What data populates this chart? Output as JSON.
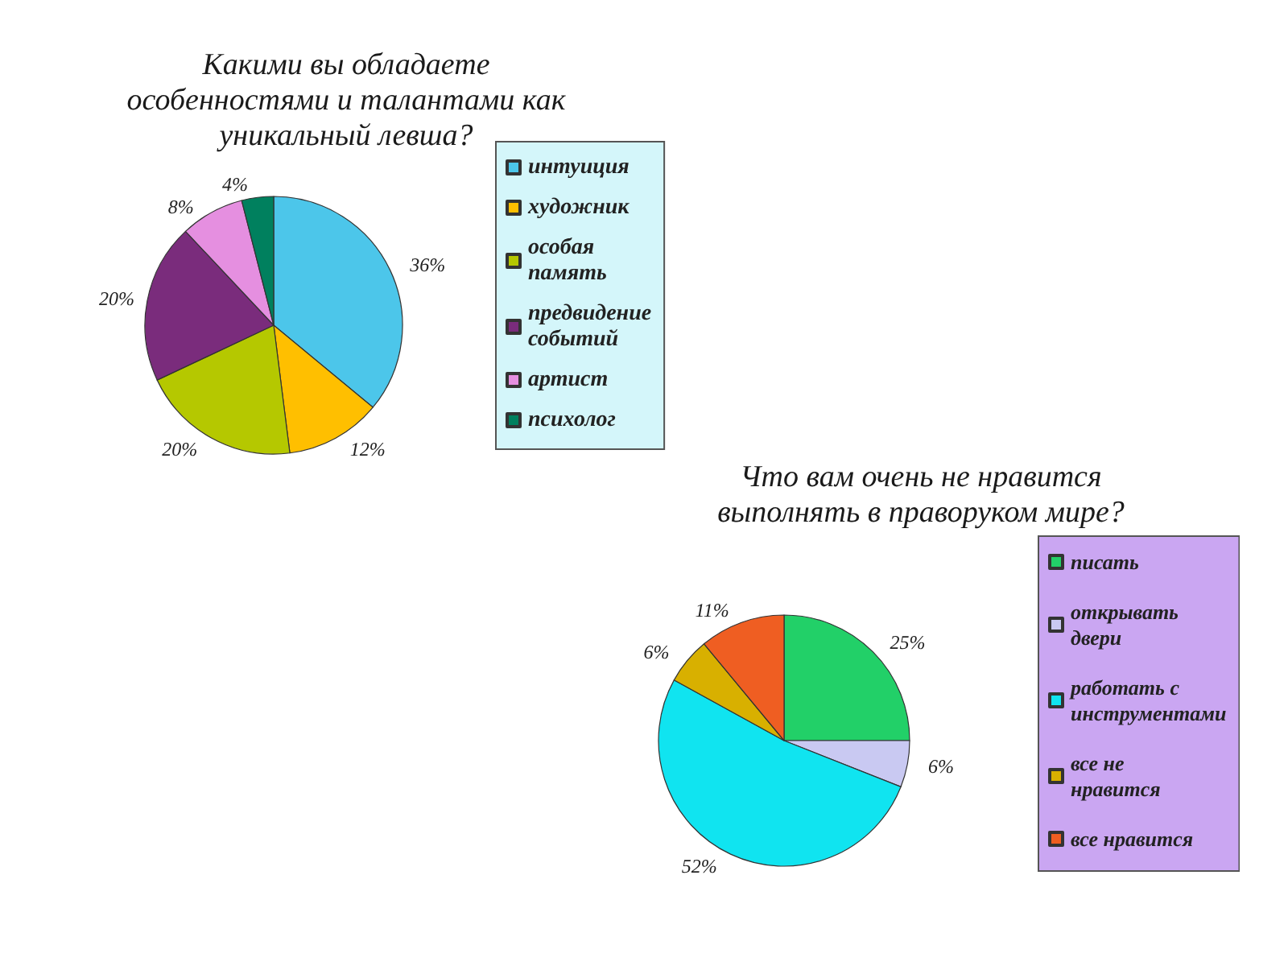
{
  "chart_data": [
    {
      "type": "pie",
      "title": "Какими вы обладаете особенностями и талантами как уникальный левша?",
      "categories": [
        "интуиция",
        "художник",
        "особая память",
        "предвидение событий",
        "артист",
        "психолог"
      ],
      "values": [
        36,
        12,
        20,
        20,
        8,
        4
      ],
      "value_labels": [
        "36%",
        "12%",
        "20%",
        "20%",
        "8%",
        "4%"
      ],
      "colors": [
        "#4cc6ea",
        "#ffbf00",
        "#b5c800",
        "#7a2c7c",
        "#e58fe0",
        "#00805e"
      ],
      "legend": "right"
    },
    {
      "type": "pie",
      "title": "Что вам очень не нравится выполнять в праворуком мире?",
      "categories": [
        "писать",
        "открывать двери",
        "работать с инструментами",
        "все не нравится",
        "все нравится"
      ],
      "values": [
        25,
        6,
        52,
        6,
        11
      ],
      "value_labels": [
        "25%",
        "6%",
        "52%",
        "6%",
        "11%"
      ],
      "colors": [
        "#22d068",
        "#c9c9f2",
        "#10e4f0",
        "#d8b000",
        "#ef5e22"
      ],
      "legend": "right"
    }
  ]
}
